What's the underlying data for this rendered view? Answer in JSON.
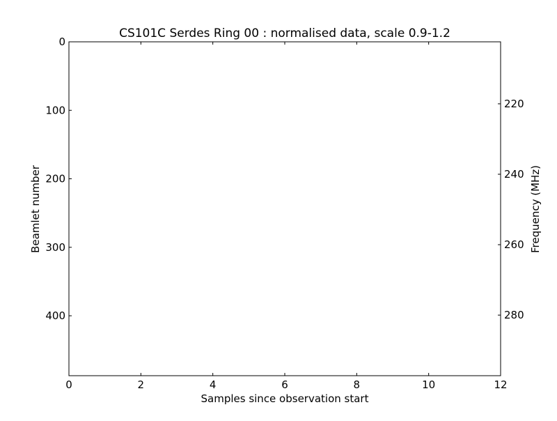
{
  "chart_data": {
    "type": "heatmap",
    "title": "CS101C Serdes Ring 00 : normalised data, scale 0.9-1.2",
    "xlabel": "Samples since observation start",
    "ylabel": "Beamlet number",
    "y2label": "Frequency (MHz)",
    "xlim": [
      0,
      12
    ],
    "ylim": [
      487.5,
      0
    ],
    "y2lim": [
      297.2,
      202.4
    ],
    "xticks": [
      0,
      2,
      4,
      6,
      8,
      10,
      12
    ],
    "yticks": [
      0,
      100,
      200,
      300,
      400
    ],
    "y2ticks": [
      220,
      240,
      260,
      280
    ],
    "values": [],
    "grid": false
  }
}
